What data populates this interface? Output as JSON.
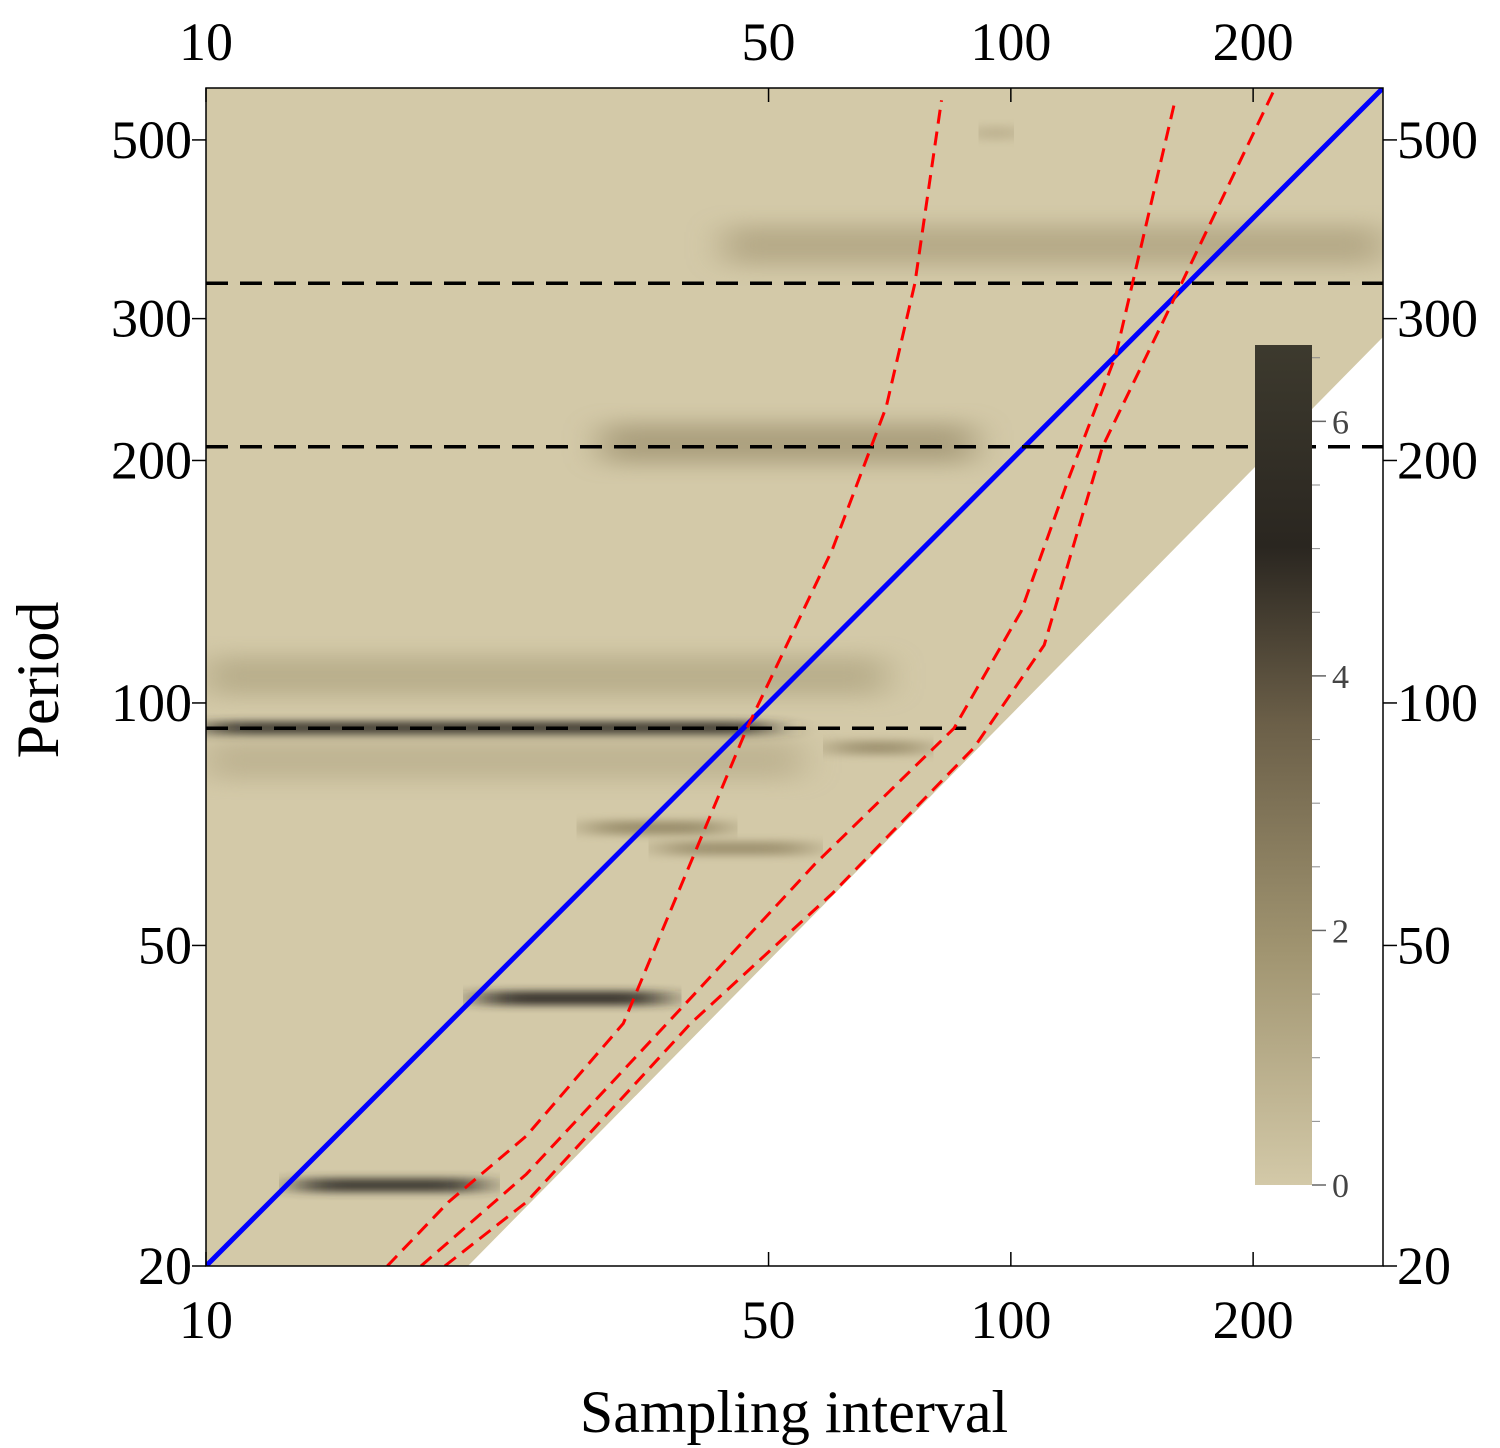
{
  "chart_data": {
    "type": "heatmap",
    "xlabel": "Sampling interval",
    "ylabel": "Period",
    "x_scale": "log",
    "y_scale": "log",
    "xlim": [
      10,
      290
    ],
    "ylim": [
      20,
      580
    ],
    "x_ticks": [
      {
        "value": 10,
        "label": "10"
      },
      {
        "value": 50,
        "label": "50"
      },
      {
        "value": 100,
        "label": "100"
      },
      {
        "value": 200,
        "label": "200"
      }
    ],
    "y_ticks": [
      {
        "value": 20,
        "label": "20"
      },
      {
        "value": 50,
        "label": "50"
      },
      {
        "value": 100,
        "label": "100"
      },
      {
        "value": 200,
        "label": "200"
      },
      {
        "value": 300,
        "label": "300"
      },
      {
        "value": 500,
        "label": "500"
      }
    ],
    "colorbar": {
      "range": [
        0,
        6.6
      ],
      "ticks": [
        {
          "value": 0,
          "label": "0"
        },
        {
          "value": 2,
          "label": "2"
        },
        {
          "value": 4,
          "label": "4"
        },
        {
          "value": 6,
          "label": "6"
        }
      ],
      "colors": [
        "#d3c9a8",
        "#a09470",
        "#6b5f48",
        "#2a2620",
        "#3d3a2e"
      ]
    },
    "lines": [
      {
        "kind": "identity",
        "color": "#0000ff",
        "style": "solid",
        "points": [
          [
            10,
            20
          ],
          [
            290,
            580
          ]
        ]
      },
      {
        "kind": "horizontal",
        "color": "#000000",
        "style": "dashed",
        "y": 93,
        "x_range": [
          10,
          88
        ]
      },
      {
        "kind": "horizontal",
        "color": "#000000",
        "style": "dashed",
        "y": 208,
        "x_range": [
          10,
          290
        ]
      },
      {
        "kind": "horizontal",
        "color": "#000000",
        "style": "dashed",
        "y": 332,
        "x_range": [
          10,
          290
        ]
      },
      {
        "kind": "alias-curve",
        "color": "#ff0000",
        "style": "dashed",
        "points": [
          [
            16.8,
            20
          ],
          [
            20,
            24
          ],
          [
            25,
            29
          ],
          [
            33,
            40
          ],
          [
            47,
            93
          ],
          [
            60,
            155
          ],
          [
            70,
            233
          ],
          [
            76,
            332
          ],
          [
            82,
            560
          ]
        ]
      },
      {
        "kind": "alias-curve",
        "color": "#ff0000",
        "style": "dashed",
        "points": [
          [
            18.5,
            20
          ],
          [
            25,
            26
          ],
          [
            40,
            43
          ],
          [
            57,
            63
          ],
          [
            85,
            93
          ],
          [
            103,
            130
          ],
          [
            118,
            190
          ],
          [
            135,
            270
          ],
          [
            160,
            560
          ]
        ]
      },
      {
        "kind": "alias-curve",
        "color": "#ff0000",
        "style": "dashed",
        "points": [
          [
            19.8,
            20
          ],
          [
            25,
            24
          ],
          [
            40,
            40
          ],
          [
            60,
            58
          ],
          [
            90,
            88
          ],
          [
            110,
            118
          ],
          [
            130,
            208
          ],
          [
            163,
            332
          ],
          [
            213,
            580
          ]
        ]
      }
    ],
    "features": [
      {
        "x": [
          10,
          50
        ],
        "y": 93,
        "intensity": 6.0
      },
      {
        "x": [
          10,
          70
        ],
        "y": 108,
        "intensity": 1.3
      },
      {
        "x": [
          10,
          55
        ],
        "y": 85,
        "intensity": 1.0
      },
      {
        "x": [
          13,
          22
        ],
        "y": 25.2,
        "intensity": 6.0
      },
      {
        "x": [
          22,
          37
        ],
        "y": 43,
        "intensity": 5.0
      },
      {
        "x": [
          30,
          44
        ],
        "y": 70,
        "intensity": 2.2
      },
      {
        "x": [
          37,
          56
        ],
        "y": 66,
        "intensity": 2.0
      },
      {
        "x": [
          31,
          90
        ],
        "y": 210,
        "intensity": 2.0
      },
      {
        "x": [
          44,
          290
        ],
        "y": 370,
        "intensity": 1.5
      },
      {
        "x": [
          60,
          78
        ],
        "y": 88,
        "intensity": 2.0
      },
      {
        "x": [
          92,
          100
        ],
        "y": 510,
        "intensity": 1.5
      }
    ]
  }
}
